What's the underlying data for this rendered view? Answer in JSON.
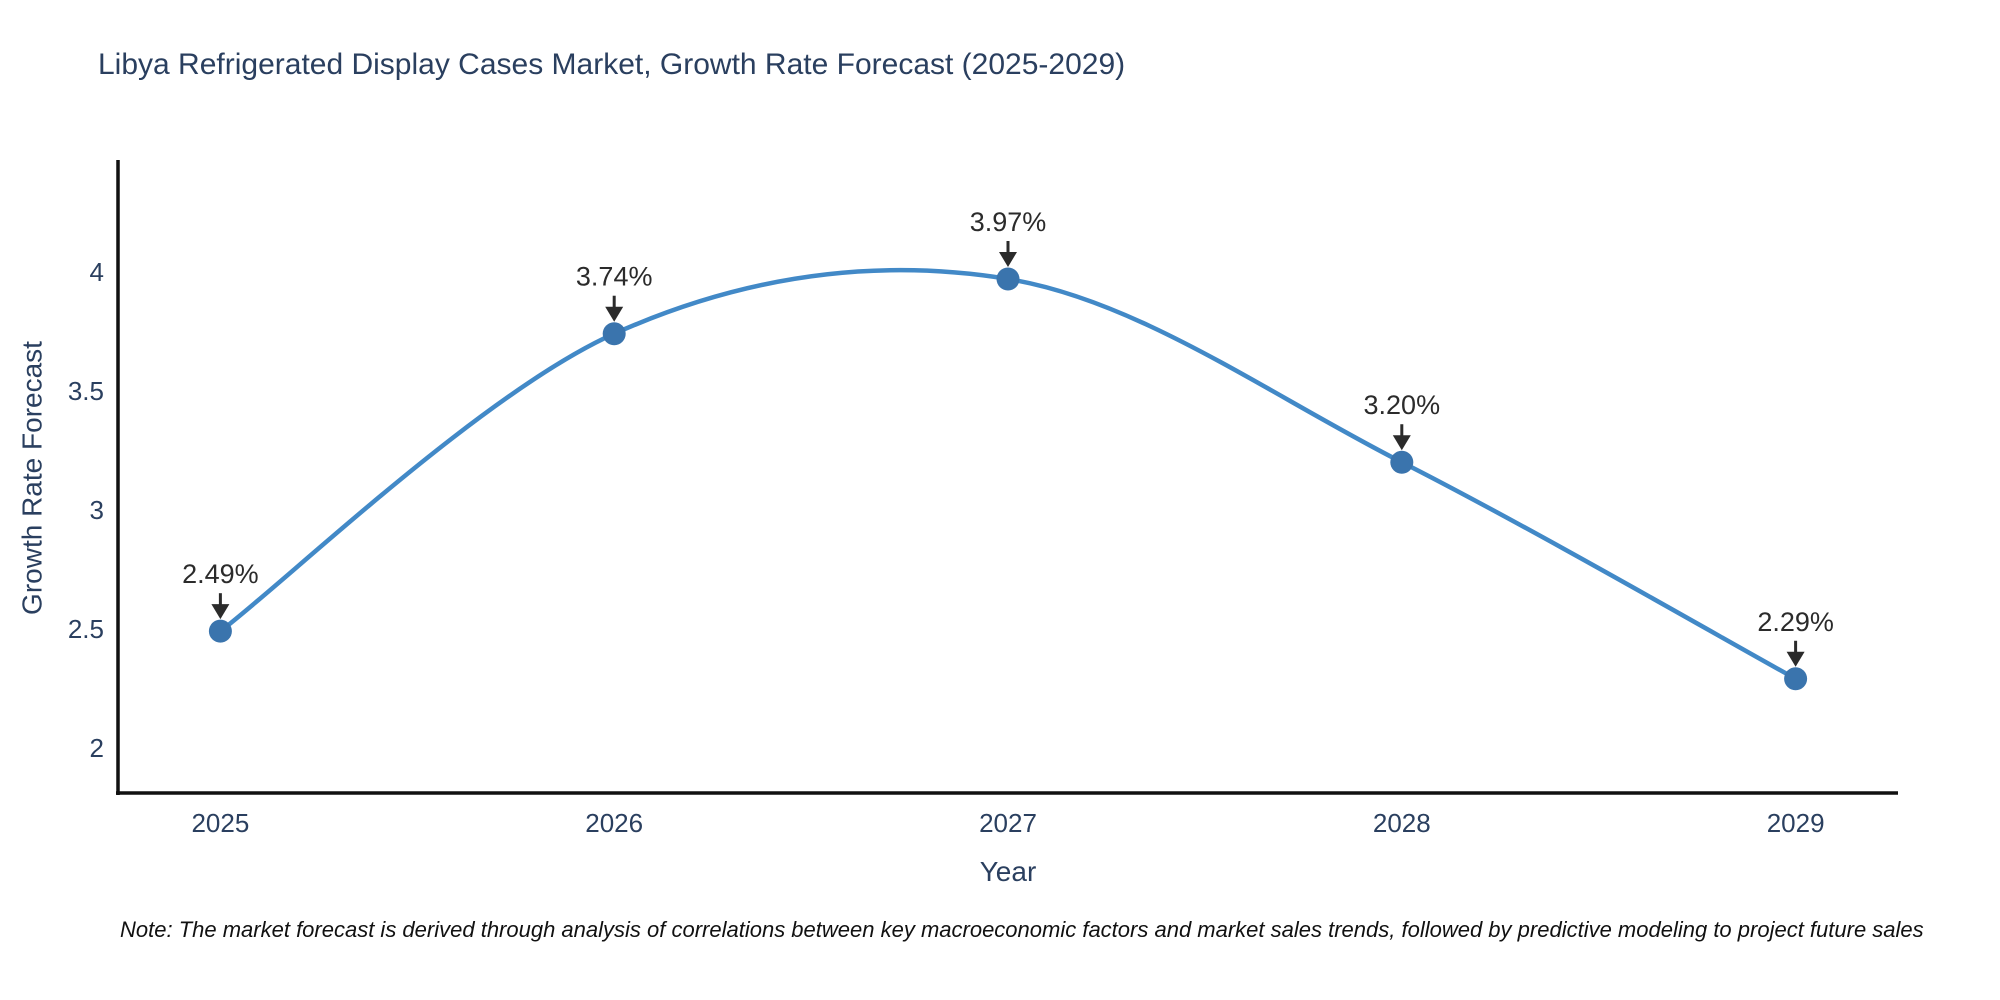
{
  "note": "Note: The market forecast is derived through analysis of correlations between key macroeconomic factors and market sales trends, followed by predictive modeling to project future sales",
  "chart_data": {
    "type": "line",
    "title": "Libya Refrigerated Display Cases Market, Growth Rate Forecast (2025-2029)",
    "xlabel": "Year",
    "ylabel": "Growth Rate Forecast",
    "x": [
      2025,
      2026,
      2027,
      2028,
      2029
    ],
    "series": [
      {
        "name": "Growth Rate Forecast",
        "values": [
          2.49,
          3.74,
          3.97,
          3.2,
          2.29
        ]
      }
    ],
    "point_labels": [
      "2.49%",
      "3.74%",
      "3.97%",
      "3.20%",
      "2.29%"
    ],
    "xticks": [
      "2025",
      "2026",
      "2027",
      "2028",
      "2029"
    ],
    "xtick_values": [
      2025,
      2026,
      2027,
      2028,
      2029
    ],
    "yticks": [
      "2",
      "2.5",
      "3",
      "3.5",
      "4"
    ],
    "ytick_values": [
      2,
      2.5,
      3,
      3.5,
      4
    ],
    "xlim": [
      2024.74,
      2029.26
    ],
    "ylim": [
      1.81,
      4.47
    ],
    "grid": false,
    "legend": false,
    "smooth": true,
    "line_color": "#4289c7",
    "marker_color": "#3a74ad",
    "annotation_color": "#2b2b2b",
    "axis_color": "#111111",
    "tick_text_color": "#2a3f5f"
  }
}
